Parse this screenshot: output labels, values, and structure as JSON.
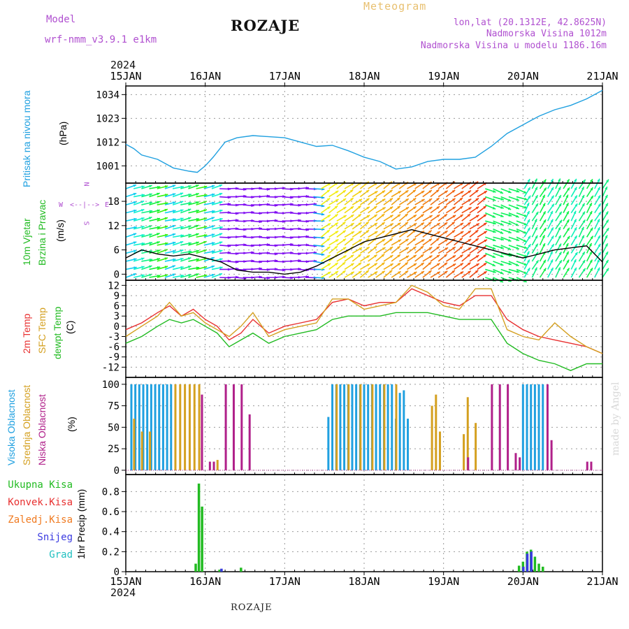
{
  "header": {
    "model_label": "Model",
    "model_name": "wrf-nmm_v3.9.1 e1km",
    "title": "ROZAJE",
    "meteogram_label": "Meteogram",
    "lonlat": "lon,lat (20.1312E, 42.8625N)",
    "altitude": "Nadmorska Visina 1012m",
    "model_altitude": "Nadmorska Visina u modelu 1186.16m",
    "year_top": "2024",
    "year_bottom": "2024",
    "footer": "ROZAJE",
    "watermark": "made by Angel"
  },
  "panel_labels": {
    "pressure": {
      "label": "Pritisak na nivou mora",
      "unit": "(hPa)",
      "color": "#1fa0e0"
    },
    "wind": {
      "label1": "10m Vjetar",
      "label2": "Brzina i Pravac",
      "unit": "(m/s)",
      "color": "#22bb22",
      "compass": {
        "n": "N",
        "s": "S",
        "e": "E",
        "w": "W"
      }
    },
    "temp": {
      "label1": "2m Temp",
      "label2": "SFC Temp",
      "label3": "dewpt Temp",
      "unit": "(C)",
      "colors": [
        "#e83030",
        "#d4a020",
        "#22bb22"
      ]
    },
    "cloud": {
      "label1": "Visoka Oblacnost",
      "label2": "Srednja Oblacnost",
      "label3": "Niska Oblacnost",
      "unit": "(%)",
      "colors": [
        "#1fa0e0",
        "#d4a020",
        "#b0208a"
      ]
    },
    "precip": {
      "unit": "1hr Precip (mm)",
      "legend": [
        {
          "label": "Ukupna Kisa",
          "color": "#22bb22"
        },
        {
          "label": "Konvek.Kisa",
          "color": "#e83030"
        },
        {
          "label": "Zaledj.Kisa",
          "color": "#f07a20"
        },
        {
          "label": "Snijeg",
          "color": "#3a3ae0"
        },
        {
          "label": "Grad",
          "color": "#20c0c0"
        }
      ]
    }
  },
  "chart_data": [
    {
      "type": "line",
      "name": "pressure",
      "x_labels": [
        "15JAN",
        "16JAN",
        "17JAN",
        "18JAN",
        "19JAN",
        "20JAN",
        "21JAN"
      ],
      "yticks": [
        1001,
        1012,
        1023,
        1034
      ],
      "ylim": [
        993,
        1038
      ],
      "grid": true,
      "series": [
        {
          "color": "#1fa0e0",
          "x": [
            0,
            0.1,
            0.2,
            0.4,
            0.6,
            0.8,
            0.9,
            1.0,
            1.1,
            1.25,
            1.4,
            1.6,
            1.8,
            2.0,
            2.2,
            2.4,
            2.6,
            2.8,
            3.0,
            3.2,
            3.4,
            3.6,
            3.8,
            4.0,
            4.2,
            4.4,
            4.6,
            4.8,
            5.0,
            5.2,
            5.4,
            5.6,
            5.8,
            6.0
          ],
          "y": [
            1011,
            1009,
            1006,
            1004,
            1000,
            998.5,
            998,
            1001,
            1005,
            1012,
            1014,
            1015,
            1014.5,
            1014,
            1012,
            1010,
            1010.5,
            1008,
            1005,
            1003,
            999.5,
            1000.5,
            1003,
            1004,
            1004,
            1005,
            1010,
            1016,
            1020,
            1024,
            1027,
            1029,
            1032,
            1036
          ]
        }
      ]
    },
    {
      "type": "line",
      "name": "wind",
      "x_labels": [
        "15JAN",
        "16JAN",
        "17JAN",
        "18JAN",
        "19JAN",
        "20JAN",
        "21JAN"
      ],
      "yticks": [
        0,
        6,
        12,
        18
      ],
      "ylim": [
        -1.5,
        22.5
      ],
      "grid": true,
      "series": [
        {
          "color": "#000000",
          "x": [
            0,
            0.2,
            0.4,
            0.6,
            0.8,
            1.0,
            1.2,
            1.4,
            1.6,
            1.8,
            2.0,
            2.2,
            2.4,
            2.6,
            2.8,
            3.0,
            3.2,
            3.4,
            3.6,
            3.8,
            4.0,
            4.2,
            4.4,
            4.6,
            4.8,
            5.0,
            5.2,
            5.4,
            5.6,
            5.8,
            6.0
          ],
          "y": [
            4,
            6,
            5,
            4.5,
            5,
            4,
            3,
            1,
            0.5,
            0.5,
            0,
            0.5,
            2,
            4,
            6,
            8,
            9,
            10,
            11,
            10,
            9,
            8,
            7,
            6,
            5,
            4,
            5,
            6,
            6.5,
            7,
            3
          ]
        }
      ]
    },
    {
      "type": "line",
      "name": "temperature",
      "x_labels": [
        "15JAN",
        "16JAN",
        "17JAN",
        "18JAN",
        "19JAN",
        "20JAN",
        "21JAN"
      ],
      "yticks": [
        -12,
        -9,
        -6,
        -3,
        0,
        3,
        6,
        9,
        12
      ],
      "ylim": [
        -15,
        13.5
      ],
      "grid": true,
      "series": [
        {
          "name": "2m Temp",
          "color": "#e83030",
          "x": [
            0,
            0.2,
            0.4,
            0.55,
            0.7,
            0.85,
            1.0,
            1.15,
            1.3,
            1.45,
            1.6,
            1.8,
            2.0,
            2.2,
            2.4,
            2.6,
            2.8,
            3.0,
            3.2,
            3.4,
            3.6,
            3.8,
            4.0,
            4.2,
            4.4,
            4.6,
            4.8,
            5.0,
            5.2,
            5.4,
            5.6,
            5.8,
            6.0
          ],
          "y": [
            -1,
            1,
            4,
            6,
            3,
            5,
            2,
            0,
            -4,
            -2,
            2,
            -2,
            0,
            1,
            2,
            7,
            8,
            6,
            7,
            7,
            11,
            9,
            7,
            6,
            9,
            9,
            2,
            -1,
            -3,
            -4,
            -5,
            -6,
            -8
          ]
        },
        {
          "name": "SFC Temp",
          "color": "#d4a020",
          "x": [
            0,
            0.2,
            0.4,
            0.55,
            0.7,
            0.85,
            1.0,
            1.15,
            1.3,
            1.45,
            1.6,
            1.8,
            2.0,
            2.2,
            2.4,
            2.6,
            2.8,
            3.0,
            3.2,
            3.4,
            3.6,
            3.8,
            4.0,
            4.2,
            4.4,
            4.6,
            4.8,
            5.0,
            5.2,
            5.4,
            5.6,
            5.8,
            6.0
          ],
          "y": [
            -3,
            0,
            3,
            7,
            3,
            4,
            1,
            -1,
            -3,
            0,
            4,
            -3,
            -1,
            0,
            1,
            8,
            8,
            5,
            6,
            7,
            12,
            10,
            6,
            5,
            11,
            11,
            -1,
            -3,
            -4,
            1,
            -3,
            -6,
            -8
          ]
        },
        {
          "name": "dewpt Temp",
          "color": "#22bb22",
          "x": [
            0,
            0.2,
            0.4,
            0.55,
            0.7,
            0.85,
            1.0,
            1.15,
            1.3,
            1.45,
            1.6,
            1.8,
            2.0,
            2.2,
            2.4,
            2.6,
            2.8,
            3.0,
            3.2,
            3.4,
            3.6,
            3.8,
            4.0,
            4.2,
            4.4,
            4.6,
            4.8,
            5.0,
            5.2,
            5.4,
            5.6,
            5.8,
            6.0
          ],
          "y": [
            -5,
            -3,
            0,
            2,
            1,
            2,
            0,
            -2,
            -6,
            -4,
            -2,
            -5,
            -3,
            -2,
            -1,
            2,
            3,
            3,
            3,
            4,
            4,
            4,
            3,
            2,
            2,
            2,
            -5,
            -8,
            -10,
            -11,
            -13,
            -11,
            -11
          ]
        }
      ]
    },
    {
      "type": "bar",
      "name": "cloud",
      "x_labels": [
        "15JAN",
        "16JAN",
        "17JAN",
        "18JAN",
        "19JAN",
        "20JAN",
        "21JAN"
      ],
      "yticks": [
        0,
        25,
        50,
        75,
        100
      ],
      "ylim": [
        -5,
        108
      ],
      "grid": true,
      "series": [
        {
          "name": "Visoka Oblacnost",
          "color": "#1fa0e0",
          "x": [
            0.07,
            0.12,
            0.17,
            0.22,
            0.27,
            0.32,
            0.37,
            0.42,
            0.47,
            0.52,
            0.57,
            2.55,
            2.6,
            2.65,
            2.7,
            2.75,
            2.8,
            2.85,
            2.9,
            2.95,
            3.0,
            3.05,
            3.1,
            3.15,
            3.2,
            3.25,
            3.3,
            3.35,
            3.4,
            3.45,
            3.5,
            3.55,
            5.0,
            5.05,
            5.1,
            5.15,
            5.2,
            5.25
          ],
          "y": [
            100,
            100,
            100,
            100,
            100,
            100,
            100,
            100,
            100,
            100,
            100,
            62,
            100,
            100,
            100,
            100,
            100,
            100,
            100,
            100,
            100,
            100,
            100,
            100,
            100,
            100,
            100,
            100,
            60,
            90,
            93,
            60,
            100,
            100,
            100,
            100,
            100,
            100
          ]
        },
        {
          "name": "Srednja Oblacnost",
          "color": "#d4a020",
          "x": [
            0.1,
            0.2,
            0.3,
            0.62,
            0.68,
            0.74,
            0.8,
            0.86,
            0.92,
            1.15,
            2.65,
            2.8,
            2.95,
            3.1,
            3.25,
            3.4,
            3.85,
            3.9,
            3.95,
            4.25,
            4.3,
            4.4
          ],
          "y": [
            60,
            45,
            45,
            100,
            100,
            100,
            100,
            100,
            100,
            12,
            100,
            100,
            100,
            100,
            100,
            100,
            75,
            88,
            45,
            42,
            85,
            55
          ]
        },
        {
          "name": "Niska Oblacnost",
          "color": "#b0208a",
          "x": [
            0.95,
            1.05,
            1.1,
            1.25,
            1.35,
            1.45,
            1.55,
            4.3,
            4.6,
            4.7,
            4.8,
            4.9,
            4.95,
            5.3,
            5.35,
            5.8,
            5.85
          ],
          "y": [
            88,
            10,
            10,
            100,
            100,
            100,
            65,
            15,
            100,
            100,
            100,
            20,
            15,
            100,
            35,
            10,
            10
          ]
        }
      ]
    },
    {
      "type": "bar",
      "name": "precipitation",
      "x_labels": [
        "15JAN",
        "16JAN",
        "17JAN",
        "18JAN",
        "19JAN",
        "20JAN",
        "21JAN"
      ],
      "yticks": [
        0,
        0.2,
        0.4,
        0.6,
        0.8
      ],
      "ylim": [
        0,
        0.97
      ],
      "grid": true,
      "series": [
        {
          "name": "Ukupna Kisa",
          "color": "#22bb22",
          "x": [
            0.88,
            0.92,
            0.96,
            1.18,
            1.45,
            4.95,
            5.0,
            5.05,
            5.1,
            5.15,
            5.2,
            5.25
          ],
          "y": [
            0.08,
            0.88,
            0.65,
            0.02,
            0.04,
            0.06,
            0.1,
            0.2,
            0.22,
            0.15,
            0.08,
            0.05
          ]
        },
        {
          "name": "Snijeg",
          "color": "#3a3ae0",
          "x": [
            1.2,
            5.0,
            5.05,
            5.1
          ],
          "y": [
            0.03,
            0.05,
            0.18,
            0.2
          ]
        }
      ]
    }
  ]
}
